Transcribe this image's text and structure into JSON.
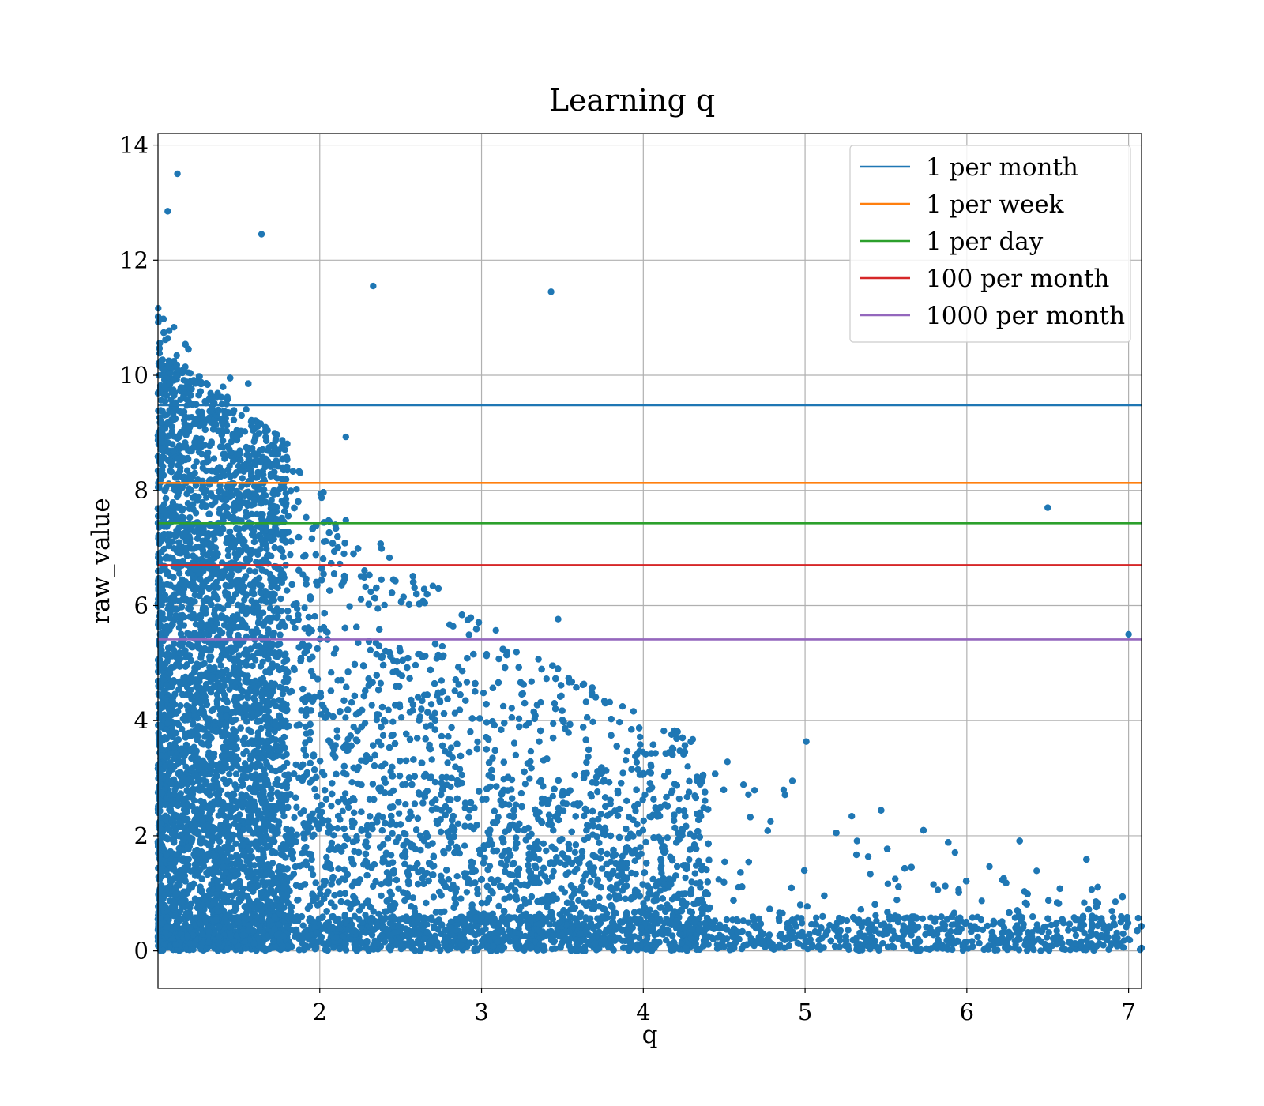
{
  "chart_data": {
    "type": "scatter",
    "title": "Learning q",
    "xlabel": "q",
    "ylabel": "raw_value",
    "xlim": [
      1.0,
      7.08
    ],
    "ylim": [
      -0.65,
      14.2
    ],
    "x_ticks": [
      2,
      3,
      4,
      5,
      6,
      7
    ],
    "y_ticks": [
      0,
      2,
      4,
      6,
      8,
      10,
      12,
      14
    ],
    "grid": true,
    "legend_position": "top-right",
    "point_color": "#1f77b4",
    "point_density_description": "dense cloud near q=1 spanning raw_value 0 to 11, thinning as q grows; upper envelope decays from ~11 at q=1 to ~2 at q=7",
    "highlight_points": [
      {
        "x": 1.12,
        "y": 13.5
      },
      {
        "x": 1.06,
        "y": 12.85
      },
      {
        "x": 1.64,
        "y": 12.45
      },
      {
        "x": 2.33,
        "y": 11.55
      },
      {
        "x": 3.43,
        "y": 11.45
      },
      {
        "x": 6.5,
        "y": 7.7
      },
      {
        "x": 7.0,
        "y": 5.5
      },
      {
        "x": 7.08,
        "y": 0.05
      }
    ],
    "series": [
      {
        "name": "1 per month",
        "type": "hline",
        "y": 9.48,
        "color": "#1f77b4"
      },
      {
        "name": "1 per week",
        "type": "hline",
        "y": 8.13,
        "color": "#ff7f0e"
      },
      {
        "name": "1 per day",
        "type": "hline",
        "y": 7.43,
        "color": "#2ca02c"
      },
      {
        "name": "100 per month",
        "type": "hline",
        "y": 6.7,
        "color": "#d62728"
      },
      {
        "name": "1000 per month",
        "type": "hline",
        "y": 5.41,
        "color": "#9467bd"
      }
    ]
  }
}
